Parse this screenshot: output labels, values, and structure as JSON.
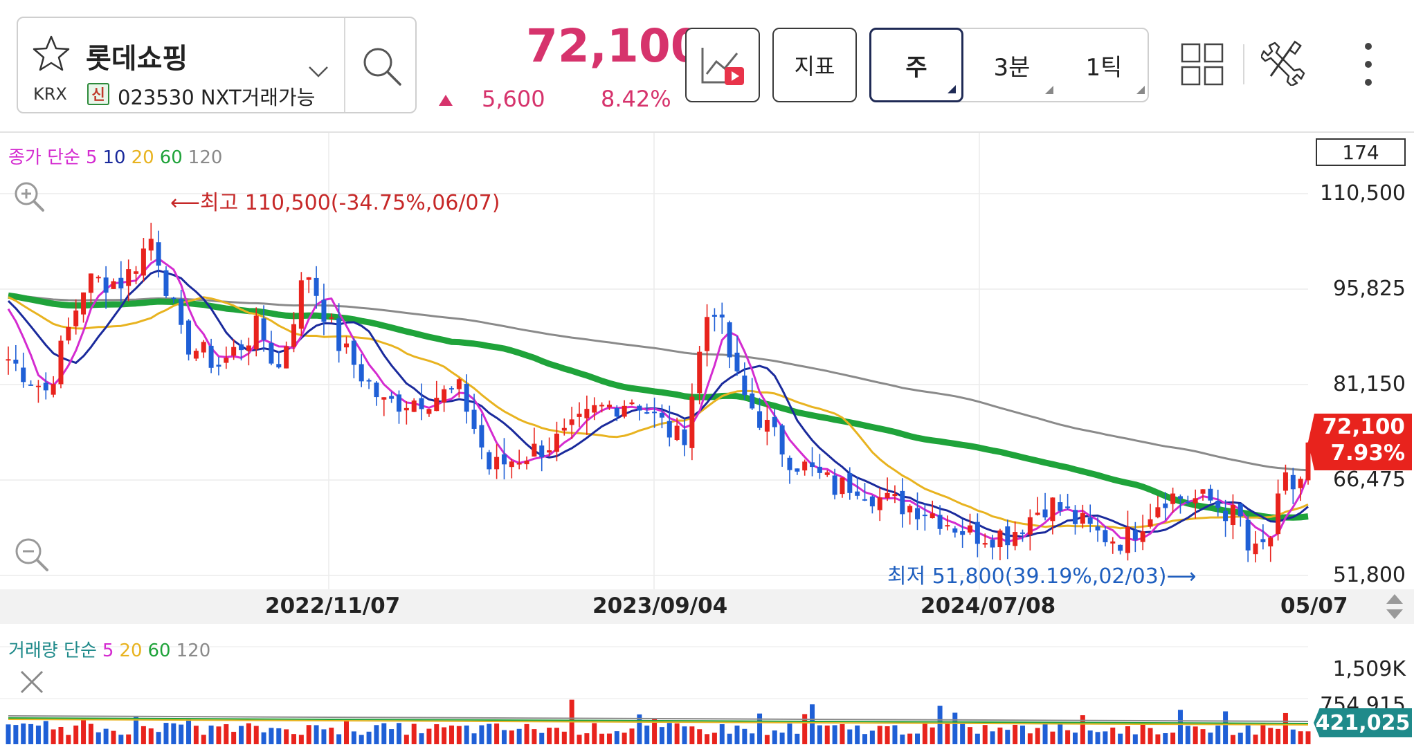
{
  "stock": {
    "name": "롯데쇼핑",
    "market": "KRX",
    "credit_badge": "신",
    "code_text": "023530 NXT거래가능",
    "current_price": "72,100",
    "change": "5,600",
    "change_rate": "8.42%"
  },
  "toolbar": {
    "indicator_label": "지표",
    "periods": [
      "주",
      "3분",
      "1틱"
    ],
    "selected_period": "주"
  },
  "colors": {
    "up": "#e8231d",
    "down": "#1f5fd6",
    "price_text": "#d6336c",
    "ma5": "#d42bd0",
    "ma10": "#1a2a9c",
    "ma20": "#e8b320",
    "ma60": "#1fa33a",
    "ma120": "#8a8a8a"
  },
  "price_chart": {
    "legend": {
      "label": "종가 단순",
      "periods": [
        "5",
        "10",
        "20",
        "60",
        "120"
      ]
    },
    "candle_count": "174",
    "y_ticks": [
      "110,500",
      "95,825",
      "81,150",
      "66,475",
      "51,800"
    ],
    "y_min": 51800,
    "y_max": 110500,
    "current_tag": {
      "price": "72,100",
      "rate": "7.93%"
    },
    "high_annotation": "최고 110,500(-34.75%,06/07)",
    "low_annotation": "최저 51,800(39.19%,02/03)",
    "x_labels": [
      "2022/11/07",
      "2023/09/04",
      "2024/07/08",
      "05/07"
    ]
  },
  "volume_chart": {
    "legend": {
      "label": "거래량 단순",
      "periods": [
        "5",
        "20",
        "60",
        "120"
      ]
    },
    "y_ticks": [
      "1,509K",
      "754,915"
    ],
    "current_volume": "421,025"
  }
}
